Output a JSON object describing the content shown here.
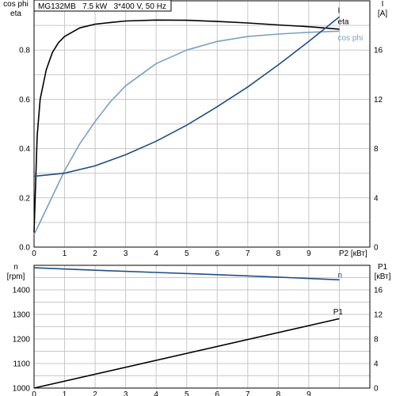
{
  "header": {
    "model_label": "MG132MB   7.5 kW   3*400 V, 50 Hz"
  },
  "colors": {
    "grid": "#c8c8c8",
    "frame": "#000000",
    "eta": "#000000",
    "current": "#1f4e82",
    "cosphi": "#7aa0c4",
    "speed": "#1f4e82",
    "p1": "#000000"
  },
  "chart_data": [
    {
      "type": "line",
      "id": "top",
      "left_axis_title": [
        "cos phi",
        "eta"
      ],
      "right_axis_title": [
        "I",
        "[A]"
      ],
      "x_axis_title": "P2 [кВт]",
      "xlim": [
        0,
        11
      ],
      "ylim_left": [
        0,
        1.0
      ],
      "ylim_right": [
        0,
        20
      ],
      "x_ticks": [
        0,
        1,
        2,
        3,
        4,
        5,
        6,
        7,
        8,
        9
      ],
      "y_ticks_left": [
        0.0,
        0.2,
        0.4,
        0.6,
        0.8
      ],
      "y_tick_labels_left": [
        "0.0",
        "0.2",
        "0.4",
        "0.6",
        "0.8"
      ],
      "y_ticks_right": [
        0,
        4,
        8,
        12,
        16
      ],
      "grid": true,
      "series": [
        {
          "name": "eta",
          "axis": "left",
          "color_key": "eta",
          "x": [
            0.0,
            0.1,
            0.2,
            0.4,
            0.6,
            0.8,
            1.0,
            1.5,
            2.0,
            2.5,
            3.0,
            4.0,
            5.0,
            6.0,
            7.0,
            8.0,
            9.0,
            10.0
          ],
          "y": [
            0.06,
            0.45,
            0.6,
            0.72,
            0.79,
            0.83,
            0.855,
            0.89,
            0.905,
            0.912,
            0.918,
            0.922,
            0.921,
            0.916,
            0.91,
            0.902,
            0.895,
            0.885
          ]
        },
        {
          "name": "cos phi",
          "axis": "left",
          "color_key": "cosphi",
          "x": [
            0.0,
            0.5,
            1.0,
            1.5,
            2.0,
            2.5,
            3.0,
            4.0,
            5.0,
            6.0,
            7.0,
            8.0,
            9.0,
            10.0
          ],
          "y": [
            0.05,
            0.18,
            0.31,
            0.42,
            0.51,
            0.59,
            0.655,
            0.745,
            0.8,
            0.835,
            0.855,
            0.865,
            0.872,
            0.877
          ]
        },
        {
          "name": "I",
          "axis": "right",
          "color_key": "current",
          "x": [
            0,
            1,
            2,
            3,
            4,
            5,
            6,
            7,
            8,
            9,
            10
          ],
          "y": [
            5.75,
            6.0,
            6.6,
            7.5,
            8.6,
            9.9,
            11.4,
            13.0,
            14.8,
            16.7,
            18.7
          ]
        }
      ],
      "series_labels": [
        {
          "text": "I",
          "color_key": "eta",
          "x": 9.95,
          "y_left": 0.95
        },
        {
          "text": "eta",
          "color_key": "eta",
          "x": 9.95,
          "y_left": 0.905
        },
        {
          "text": "cos phi",
          "color_key": "cosphi",
          "x": 9.95,
          "y_left": 0.84
        }
      ]
    },
    {
      "type": "line",
      "id": "bottom",
      "left_axis_title": [
        "n",
        "[rpm]"
      ],
      "right_axis_title": [
        "P1",
        "[кВт]"
      ],
      "xlim": [
        0,
        11
      ],
      "ylim_left": [
        1000,
        1500
      ],
      "ylim_right": [
        0,
        20
      ],
      "x_ticks": [
        0,
        1,
        2,
        3,
        4,
        5,
        6,
        7,
        8,
        9
      ],
      "y_ticks_left": [
        1000,
        1100,
        1200,
        1300,
        1400
      ],
      "y_ticks_right": [
        0,
        4,
        8,
        12,
        16
      ],
      "grid": true,
      "series": [
        {
          "name": "n",
          "axis": "left",
          "color_key": "speed",
          "x": [
            0,
            2,
            4,
            6,
            8,
            10
          ],
          "y": [
            1490,
            1480,
            1471,
            1462,
            1452,
            1441
          ]
        },
        {
          "name": "P1",
          "axis": "right",
          "color_key": "p1",
          "x": [
            0,
            10
          ],
          "y": [
            0,
            11.3
          ]
        }
      ],
      "series_labels": [
        {
          "text": "n",
          "color_key": "speed",
          "x": 9.95,
          "y_left": 1450
        },
        {
          "text": "P1",
          "color_key": "p1",
          "x": 9.8,
          "y_left": 1300
        }
      ]
    }
  ]
}
